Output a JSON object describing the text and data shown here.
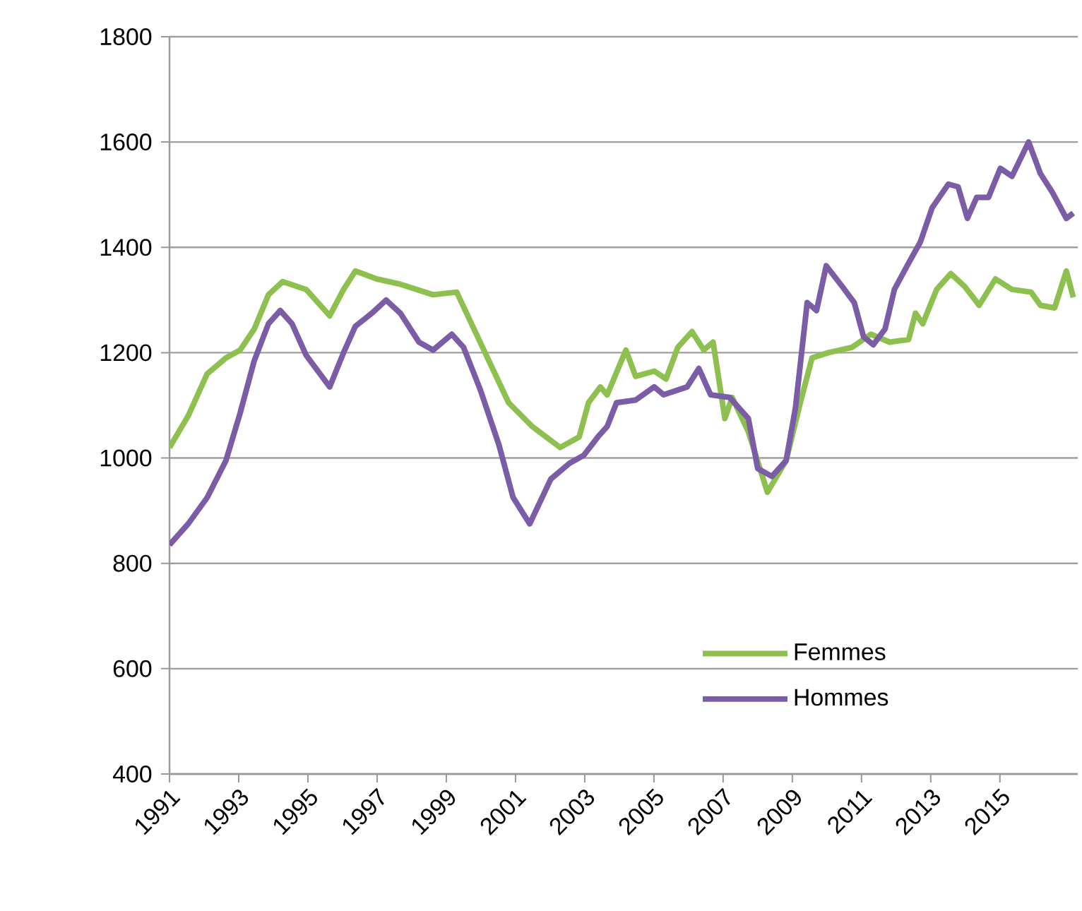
{
  "chart_data": {
    "type": "line",
    "xlim": [
      1991,
      2017.25
    ],
    "xticks": [
      1991,
      1993,
      1995,
      1997,
      1999,
      2001,
      2003,
      2005,
      2007,
      2009,
      2011,
      2013,
      2015
    ],
    "ylim": [
      400,
      1800
    ],
    "yticks": [
      400,
      600,
      800,
      1000,
      1200,
      1400,
      1600,
      1800
    ],
    "grid": "y",
    "legend": "bottom right",
    "marker": "none",
    "line_style": "solid",
    "series": [
      {
        "name": "Femmes",
        "color": "#8dc04f",
        "x": [
          1991.0,
          1991.54,
          1992.09,
          1992.63,
          1993.04,
          1993.45,
          1993.86,
          1994.27,
          1994.95,
          1995.63,
          1996.03,
          1996.37,
          1996.99,
          1997.67,
          1998.62,
          1999.3,
          2000.12,
          2000.8,
          2001.48,
          2002.29,
          2002.84,
          2003.11,
          2003.45,
          2003.65,
          2004.19,
          2004.47,
          2005.01,
          2005.35,
          2005.69,
          2006.1,
          2006.44,
          2006.71,
          2007.05,
          2007.26,
          2007.73,
          2008.28,
          2008.82,
          2009.23,
          2009.57,
          2010.04,
          2010.72,
          2011.27,
          2011.81,
          2012.36,
          2012.56,
          2012.77,
          2013.17,
          2013.58,
          2013.99,
          2014.4,
          2014.87,
          2015.35,
          2015.9,
          2016.17,
          2016.58,
          2016.92,
          2017.12
        ],
        "values": [
          1020,
          1080,
          1160,
          1190,
          1205,
          1245,
          1310,
          1335,
          1320,
          1270,
          1320,
          1355,
          1340,
          1330,
          1310,
          1315,
          1200,
          1105,
          1060,
          1020,
          1040,
          1105,
          1135,
          1120,
          1205,
          1155,
          1165,
          1150,
          1210,
          1240,
          1205,
          1220,
          1075,
          1115,
          1050,
          935,
          995,
          1105,
          1190,
          1200,
          1210,
          1235,
          1220,
          1225,
          1275,
          1255,
          1320,
          1350,
          1325,
          1290,
          1340,
          1320,
          1315,
          1290,
          1285,
          1355,
          1305
        ]
      },
      {
        "name": "Hommes",
        "color": "#7b5ca6",
        "x": [
          1991.0,
          1991.54,
          1992.09,
          1992.63,
          1993.04,
          1993.45,
          1993.86,
          1994.2,
          1994.54,
          1994.95,
          1995.63,
          1996.03,
          1996.37,
          1996.85,
          1997.26,
          1997.67,
          1998.21,
          1998.62,
          1999.16,
          1999.5,
          1999.98,
          2000.52,
          2000.93,
          2001.41,
          2002.02,
          2002.56,
          2002.97,
          2003.38,
          2003.65,
          2003.92,
          2004.47,
          2005.01,
          2005.28,
          2005.96,
          2006.3,
          2006.64,
          2007.19,
          2007.73,
          2008.0,
          2008.41,
          2008.82,
          2009.09,
          2009.43,
          2009.7,
          2009.98,
          2010.45,
          2010.79,
          2011.06,
          2011.34,
          2011.68,
          2011.95,
          2012.36,
          2012.7,
          2013.04,
          2013.51,
          2013.79,
          2014.06,
          2014.33,
          2014.67,
          2015.01,
          2015.35,
          2015.83,
          2016.17,
          2016.51,
          2016.92,
          2017.12
        ],
        "values": [
          835,
          875,
          925,
          995,
          1085,
          1185,
          1255,
          1280,
          1255,
          1195,
          1135,
          1200,
          1250,
          1275,
          1300,
          1275,
          1220,
          1205,
          1235,
          1210,
          1130,
          1025,
          925,
          875,
          960,
          990,
          1005,
          1040,
          1060,
          1105,
          1110,
          1135,
          1120,
          1135,
          1170,
          1120,
          1115,
          1075,
          980,
          965,
          995,
          1095,
          1295,
          1280,
          1365,
          1325,
          1295,
          1230,
          1215,
          1245,
          1320,
          1370,
          1410,
          1475,
          1520,
          1515,
          1455,
          1495,
          1495,
          1550,
          1535,
          1600,
          1540,
          1505,
          1455,
          1465
        ]
      }
    ]
  }
}
